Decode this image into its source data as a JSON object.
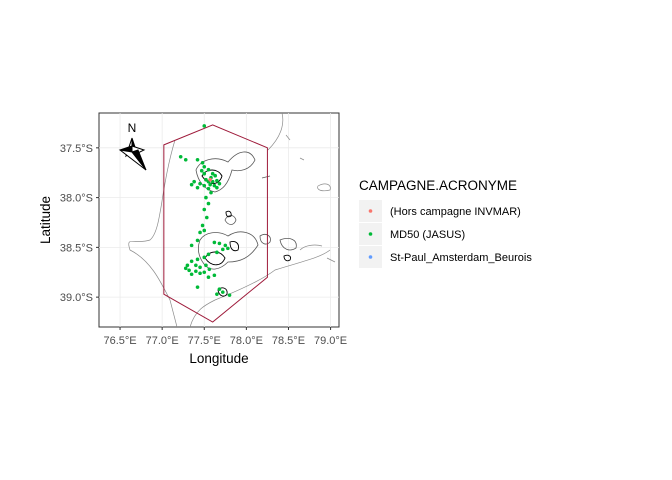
{
  "chart_data": {
    "type": "scatter",
    "title": "",
    "xlabel": "Longitude",
    "ylabel": "Latitude",
    "xlim": [
      76.25,
      79.1
    ],
    "ylim": [
      -39.3,
      -37.15
    ],
    "x_ticks": [
      {
        "value": 76.5,
        "label": "76.5°E"
      },
      {
        "value": 77.0,
        "label": "77.0°E"
      },
      {
        "value": 77.5,
        "label": "77.5°E"
      },
      {
        "value": 78.0,
        "label": "78.0°E"
      },
      {
        "value": 78.5,
        "label": "78.5°E"
      },
      {
        "value": 79.0,
        "label": "79.0°E"
      }
    ],
    "y_ticks": [
      {
        "value": -37.5,
        "label": "37.5°S"
      },
      {
        "value": -38.0,
        "label": "38.0°S"
      },
      {
        "value": -38.5,
        "label": "38.5°S"
      },
      {
        "value": -39.0,
        "label": "39.0°S"
      }
    ],
    "grid": true,
    "legend": {
      "title": "CAMPAGNE.ACRONYME",
      "position": "right",
      "items": [
        {
          "label": "(Hors campagne INVMAR)",
          "color": "#F8766D"
        },
        {
          "label": "MD50 (JASUS)",
          "color": "#00BA38"
        },
        {
          "label": "St-Paul_Amsterdam_Beurois",
          "color": "#619CFF"
        }
      ]
    },
    "north_arrow": {
      "label": "N"
    },
    "boundary_polygon": {
      "color": "#9e1a3a",
      "points": [
        [
          77.02,
          -37.47
        ],
        [
          77.6,
          -37.27
        ],
        [
          78.25,
          -37.5
        ],
        [
          78.25,
          -38.8
        ],
        [
          77.6,
          -39.25
        ],
        [
          77.02,
          -38.97
        ]
      ]
    },
    "series": [
      {
        "name": "MD50 (JASUS)",
        "color": "#00BA38",
        "points": [
          [
            77.5,
            -37.28
          ],
          [
            77.22,
            -37.59
          ],
          [
            77.28,
            -37.62
          ],
          [
            77.42,
            -37.62
          ],
          [
            77.48,
            -37.65
          ],
          [
            77.5,
            -37.69
          ],
          [
            77.47,
            -37.73
          ],
          [
            77.5,
            -37.76
          ],
          [
            77.55,
            -37.72
          ],
          [
            77.6,
            -37.76
          ],
          [
            77.63,
            -37.78
          ],
          [
            77.58,
            -37.8
          ],
          [
            77.52,
            -37.82
          ],
          [
            77.55,
            -37.84
          ],
          [
            77.6,
            -37.84
          ],
          [
            77.65,
            -37.83
          ],
          [
            77.68,
            -37.86
          ],
          [
            77.62,
            -37.88
          ],
          [
            77.57,
            -37.87
          ],
          [
            77.5,
            -37.88
          ],
          [
            77.45,
            -37.86
          ],
          [
            77.38,
            -37.84
          ],
          [
            77.35,
            -37.87
          ],
          [
            77.42,
            -37.9
          ],
          [
            77.55,
            -37.91
          ],
          [
            77.65,
            -37.9
          ],
          [
            77.58,
            -37.95
          ],
          [
            77.52,
            -38.0
          ],
          [
            77.55,
            -38.06
          ],
          [
            77.5,
            -38.12
          ],
          [
            77.53,
            -38.2
          ],
          [
            77.48,
            -38.28
          ],
          [
            77.5,
            -38.33
          ],
          [
            77.45,
            -38.35
          ],
          [
            77.42,
            -38.43
          ],
          [
            77.35,
            -38.48
          ],
          [
            77.62,
            -38.45
          ],
          [
            77.68,
            -38.46
          ],
          [
            77.75,
            -38.48
          ],
          [
            77.78,
            -38.51
          ],
          [
            77.72,
            -38.52
          ],
          [
            77.65,
            -38.55
          ],
          [
            77.55,
            -38.57
          ],
          [
            77.5,
            -38.6
          ],
          [
            77.42,
            -38.62
          ],
          [
            77.35,
            -38.64
          ],
          [
            77.3,
            -38.68
          ],
          [
            77.4,
            -38.68
          ],
          [
            77.45,
            -38.7
          ],
          [
            77.52,
            -38.68
          ],
          [
            77.56,
            -38.72
          ],
          [
            77.5,
            -38.75
          ],
          [
            77.45,
            -38.76
          ],
          [
            77.4,
            -38.74
          ],
          [
            77.35,
            -38.77
          ],
          [
            77.32,
            -38.73
          ],
          [
            77.28,
            -38.71
          ],
          [
            77.55,
            -38.8
          ],
          [
            77.62,
            -38.78
          ],
          [
            77.42,
            -38.9
          ],
          [
            77.68,
            -38.92
          ],
          [
            77.72,
            -38.95
          ],
          [
            77.8,
            -38.98
          ],
          [
            77.65,
            -38.97
          ]
        ]
      },
      {
        "name": "(Hors campagne INVMAR)",
        "color": "#F8766D",
        "points": [
          [
            77.57,
            -37.82
          ]
        ]
      }
    ]
  }
}
